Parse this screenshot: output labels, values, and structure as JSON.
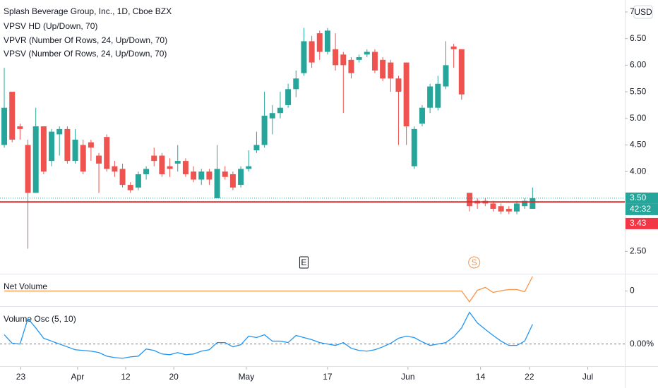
{
  "chart_data": [
    {
      "type": "candlestick",
      "title": "Splash Beverage Group, Inc., 1D, Cboe BZX",
      "subtitles": [
        "VPSV HD (Up/Down, 70)",
        "VPVR (Number Of Rows, 24, Up/Down, 70)",
        "VPSV (Number Of Rows, 24, Up/Down, 70)"
      ],
      "currency": "USD",
      "up_color": "#26a69a",
      "down_color": "#ef5350",
      "open": [
        4.5,
        5.5,
        4.85,
        4.5,
        3.6,
        4.85,
        4.2,
        4.7,
        4.8,
        4.2,
        4.5,
        4.55,
        4.3,
        4.65,
        4.1,
        4.05,
        3.75,
        3.7,
        3.95,
        4.3,
        4.3,
        4.1,
        4.15,
        4.2,
        4.0,
        3.85,
        4.0,
        3.5,
        4.0,
        3.95,
        3.75,
        4.05,
        4.4,
        4.5,
        5.0,
        5.1,
        5.25,
        5.55,
        5.85,
        6.45,
        6.6,
        6.25,
        6.3,
        6.2,
        6.1,
        6.1,
        6.2,
        6.25,
        6.1,
        6.05,
        5.75,
        6.05,
        4.1,
        4.9,
        5.2,
        5.2,
        5.6,
        6.35,
        6.3,
        3.6,
        3.45,
        3.45,
        3.4,
        3.35,
        3.3,
        3.25,
        3.35,
        3.3
      ],
      "high": [
        5.95,
        5.5,
        4.9,
        4.6,
        5.2,
        4.85,
        4.8,
        4.85,
        4.85,
        4.8,
        4.6,
        4.6,
        4.35,
        4.7,
        4.2,
        4.15,
        3.8,
        4.0,
        4.1,
        4.45,
        4.35,
        4.25,
        4.5,
        4.25,
        4.1,
        4.05,
        4.05,
        4.5,
        4.1,
        4.0,
        4.1,
        4.4,
        4.75,
        5.5,
        5.25,
        5.5,
        5.65,
        5.9,
        6.7,
        6.55,
        6.65,
        6.7,
        6.6,
        6.25,
        6.15,
        6.2,
        6.3,
        6.3,
        6.15,
        6.1,
        5.8,
        6.05,
        4.85,
        5.25,
        5.65,
        5.8,
        6.45,
        6.4,
        6.3,
        3.6,
        3.5,
        3.5,
        3.45,
        3.4,
        3.35,
        3.45,
        3.5,
        3.7
      ],
      "low": [
        4.45,
        4.55,
        4.6,
        2.55,
        3.6,
        3.95,
        4.1,
        4.3,
        4.15,
        4.15,
        3.95,
        4.2,
        3.6,
        4.0,
        3.9,
        3.7,
        3.6,
        3.65,
        3.85,
        4.1,
        3.9,
        3.9,
        4.0,
        3.9,
        3.8,
        3.75,
        3.75,
        3.5,
        3.85,
        3.65,
        3.7,
        4.0,
        4.35,
        4.45,
        4.7,
        5.0,
        5.2,
        5.4,
        5.8,
        5.95,
        6.1,
        6.2,
        5.9,
        5.1,
        5.75,
        6.05,
        6.15,
        5.85,
        5.7,
        5.5,
        4.5,
        4.5,
        4.05,
        4.85,
        5.1,
        5.15,
        5.55,
        5.95,
        5.35,
        3.25,
        3.3,
        3.35,
        3.25,
        3.2,
        3.2,
        3.2,
        3.3,
        3.3
      ],
      "close": [
        5.2,
        4.6,
        4.8,
        3.6,
        4.85,
        4.0,
        4.75,
        4.8,
        4.2,
        4.6,
        4.0,
        4.45,
        4.15,
        4.05,
        4.0,
        3.75,
        3.65,
        3.95,
        4.05,
        4.2,
        3.95,
        4.05,
        4.2,
        3.95,
        3.85,
        4.0,
        3.85,
        4.05,
        3.9,
        3.7,
        4.05,
        4.1,
        4.5,
        5.05,
        5.1,
        5.2,
        5.55,
        5.75,
        6.45,
        6.05,
        6.25,
        6.65,
        6.0,
        6.0,
        5.85,
        6.15,
        6.25,
        5.9,
        5.75,
        5.75,
        5.5,
        4.85,
        4.8,
        5.2,
        5.6,
        5.65,
        6.0,
        6.3,
        5.45,
        3.35,
        3.4,
        3.4,
        3.3,
        3.25,
        3.25,
        3.4,
        3.45,
        3.5
      ],
      "xlim": [
        -0.54,
        78.7
      ],
      "xticks": [
        {
          "value": 2.1,
          "label": "23"
        },
        {
          "value": 9.3,
          "label": "Apr"
        },
        {
          "value": 15.4,
          "label": "12"
        },
        {
          "value": 21.5,
          "label": "20"
        },
        {
          "value": 30.7,
          "label": "May"
        },
        {
          "value": 41,
          "label": "17"
        },
        {
          "value": 51.2,
          "label": "Jun"
        },
        {
          "value": 60.4,
          "label": "14"
        },
        {
          "value": 66.6,
          "label": "22"
        },
        {
          "value": 74,
          "label": "Jul"
        }
      ],
      "ylim": [
        2.08,
        7.225
      ],
      "yticks": [
        {
          "value": 2.5,
          "label": "2.50"
        },
        {
          "value": 4,
          "label": "4.00"
        },
        {
          "value": 4.5,
          "label": "4.50"
        },
        {
          "value": 5,
          "label": "5.00"
        },
        {
          "value": 5.5,
          "label": "5.50"
        },
        {
          "value": 6,
          "label": "6.00"
        },
        {
          "value": 6.5,
          "label": "6.50"
        },
        7
      ],
      "last_price": {
        "value": 3.5,
        "label": "3.50"
      },
      "countdown": "42:32",
      "prev_close": {
        "value": 3.43,
        "label": "3.43"
      },
      "events": [
        {
          "index": 38,
          "label": "E"
        },
        {
          "index": 59.6,
          "label": "S"
        }
      ]
    },
    {
      "type": "line",
      "title": "Net Volume",
      "color": "#f7954a",
      "values": [
        0,
        0,
        0,
        0,
        0,
        0,
        0,
        0,
        0,
        0,
        0,
        0,
        0,
        0,
        0,
        0,
        0,
        0,
        0,
        0,
        0,
        0,
        0,
        0,
        0,
        0,
        0,
        0,
        0,
        0,
        0,
        0,
        0,
        0,
        0,
        0,
        0,
        0,
        0,
        0,
        0,
        0,
        0,
        0,
        0,
        0,
        0,
        0,
        0,
        0,
        0,
        0,
        0,
        0,
        0,
        0,
        0,
        0,
        0,
        -0.75,
        0.05,
        0.25,
        -0.1,
        0.02,
        0.1,
        0.1,
        -0.05,
        1.0
      ],
      "ylim": [
        -1,
        1
      ],
      "yticks": [
        0
      ]
    },
    {
      "type": "line",
      "title": "Volume Osc (5, 10)",
      "color": "#2196f3",
      "values": [
        26,
        2,
        0,
        71,
        45,
        16,
        8,
        0,
        -8,
        -16,
        -18,
        -20,
        -24,
        -34,
        -38,
        -40,
        -36,
        -34,
        -14,
        -18,
        -28,
        -30,
        -24,
        -30,
        -28,
        -20,
        -16,
        4,
        4,
        -8,
        -2,
        22,
        18,
        26,
        8,
        8,
        4,
        24,
        18,
        12,
        4,
        0,
        -4,
        4,
        -12,
        -18,
        -20,
        -16,
        -8,
        2,
        16,
        22,
        18,
        6,
        -4,
        0,
        4,
        20,
        45,
        89,
        59,
        41,
        24,
        8,
        -4,
        -4,
        8,
        55
      ],
      "ylim": [
        -60,
        100
      ],
      "yticks": [
        {
          "value": 0,
          "label": "0.00%"
        }
      ]
    }
  ]
}
